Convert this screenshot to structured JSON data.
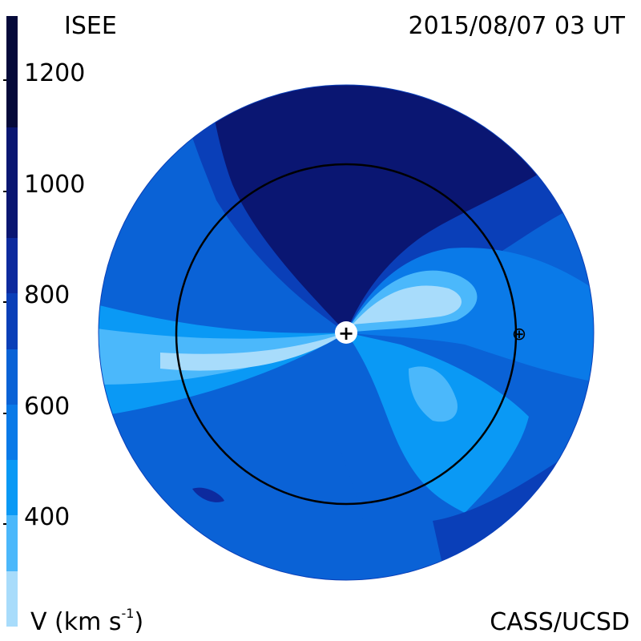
{
  "header": {
    "instrument": "ISEE",
    "timestamp": "2015/08/07 03 UT"
  },
  "footer": {
    "quantity_label": "V (km s",
    "quantity_exp": "-1",
    "quantity_close": ")",
    "credit": "CASS/UCSD"
  },
  "colorbar": {
    "ticks": [
      "1200",
      "1000",
      "800",
      "600",
      "400"
    ],
    "tick_values": [
      1200,
      1000,
      800,
      600,
      400
    ],
    "range": [
      200,
      1300
    ],
    "levels": [
      {
        "from": 1100,
        "to": 1300,
        "color": "#050a3a"
      },
      {
        "from": 900,
        "to": 1100,
        "color": "#0a1672"
      },
      {
        "from": 800,
        "to": 900,
        "color": "#0d2a9e"
      },
      {
        "from": 700,
        "to": 800,
        "color": "#0a3fb8"
      },
      {
        "from": 600,
        "to": 700,
        "color": "#0a62d6"
      },
      {
        "from": 500,
        "to": 600,
        "color": "#0a7ae8"
      },
      {
        "from": 400,
        "to": 500,
        "color": "#0a99f5"
      },
      {
        "from": 300,
        "to": 400,
        "color": "#4bb8fb"
      },
      {
        "from": 200,
        "to": 300,
        "color": "#a8dcfb"
      }
    ]
  },
  "map": {
    "sun_symbol": "+",
    "earth_symbol": "⊕"
  }
}
